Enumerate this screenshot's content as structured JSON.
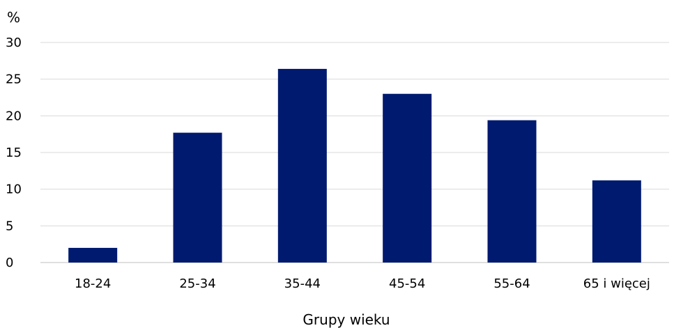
{
  "chart_data": {
    "type": "bar",
    "title": "",
    "ylabel": "%",
    "xlabel": "Grupy wieku",
    "categories": [
      "18-24",
      "25-34",
      "35-44",
      "45-54",
      "55-64",
      "65 i więcej"
    ],
    "values": [
      2.0,
      17.7,
      26.4,
      23.0,
      19.4,
      11.2
    ],
    "ylim": [
      0,
      30
    ],
    "yticks": [
      0,
      5,
      10,
      15,
      20,
      25,
      30
    ],
    "grid": true,
    "legend": "none",
    "bar_color": "#001a70"
  }
}
